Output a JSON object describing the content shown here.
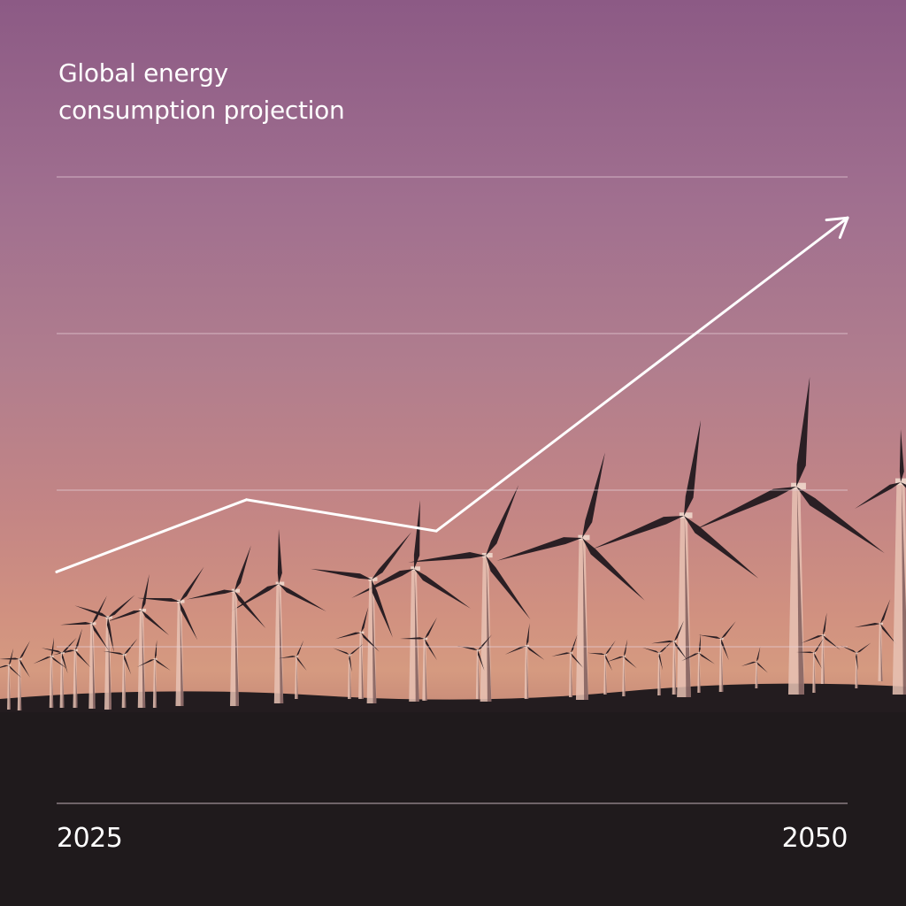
{
  "chart_data": {
    "type": "line",
    "title_lines": [
      "Global energy",
      "consumption projection"
    ],
    "x": [
      2025,
      2031,
      2037,
      2050
    ],
    "y": [
      1.0,
      1.53,
      1.3,
      3.6
    ],
    "tick_labels": [
      "2025",
      "2050"
    ],
    "xlim": [
      2025,
      2050
    ],
    "ylim": [
      -0.7,
      3.9
    ],
    "grid": true,
    "gridline_count": 5,
    "arrowhead": true,
    "line_color": "#ffffff",
    "grid_color": "#e8d3dc",
    "background": "wind turbines at sunset"
  }
}
